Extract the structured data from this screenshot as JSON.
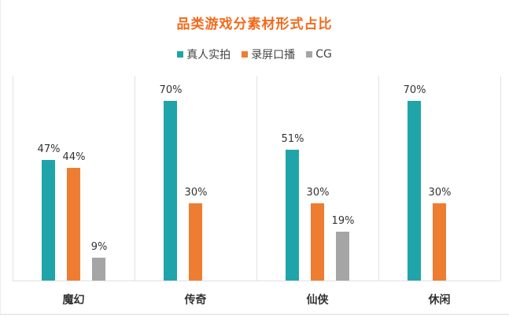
{
  "title": "品类游戏分素材形式占比",
  "legend": [
    {
      "label": "真人实拍",
      "color": "#1fa5a9"
    },
    {
      "label": "录屏口播",
      "color": "#ee7d31"
    },
    {
      "label": "CG",
      "color": "#a5a5a5"
    }
  ],
  "categories": [
    {
      "label": "魔幻",
      "values": [
        "47%",
        "44%",
        "9%"
      ]
    },
    {
      "label": "传奇",
      "values": [
        "70%",
        "30%",
        ""
      ]
    },
    {
      "label": "仙侠",
      "values": [
        "51%",
        "30%",
        "19%"
      ]
    },
    {
      "label": "休闲",
      "values": [
        "70%",
        "30%",
        ""
      ]
    }
  ],
  "chart_data": {
    "type": "bar",
    "title": "品类游戏分素材形式占比",
    "categories": [
      "魔幻",
      "传奇",
      "仙侠",
      "休闲"
    ],
    "series": [
      {
        "name": "真人实拍",
        "color": "#1fa5a9",
        "values": [
          47,
          70,
          51,
          70
        ]
      },
      {
        "name": "录屏口播",
        "color": "#ee7d31",
        "values": [
          44,
          30,
          30,
          30
        ]
      },
      {
        "name": "CG",
        "color": "#a5a5a5",
        "values": [
          9,
          0,
          19,
          0
        ]
      }
    ],
    "xlabel": "",
    "ylabel": "",
    "ylim": [
      0,
      80
    ],
    "value_format": "percent",
    "grid": false,
    "category_dividers": true,
    "legend_position": "top"
  }
}
